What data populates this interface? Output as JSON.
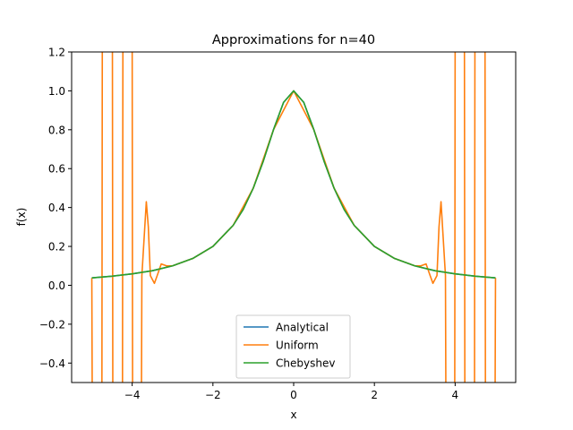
{
  "chart_data": {
    "type": "line",
    "title": "Approximations for n=40",
    "xlabel": "x",
    "ylabel": "f(x)",
    "xlim": [
      -5.5,
      5.5
    ],
    "ylim": [
      -0.5,
      1.2
    ],
    "xticks": [
      -4,
      -2,
      0,
      2,
      4
    ],
    "xtick_labels": [
      "−4",
      "−2",
      "0",
      "2",
      "4"
    ],
    "yticks": [
      -0.4,
      -0.2,
      0.0,
      0.2,
      0.4,
      0.6,
      0.8,
      1.0,
      1.2
    ],
    "ytick_labels": [
      "−0.4",
      "−0.2",
      "0.0",
      "0.2",
      "0.4",
      "0.6",
      "0.8",
      "1.0",
      "1.2"
    ],
    "grid": false,
    "legend_position": "lower center",
    "series": [
      {
        "name": "Analytical",
        "color": "#1f77b4",
        "x": [
          -5.0,
          -4.5,
          -4.0,
          -3.5,
          -3.0,
          -2.5,
          -2.0,
          -1.5,
          -1.25,
          -1.0,
          -0.75,
          -0.5,
          -0.25,
          0.0,
          0.25,
          0.5,
          0.75,
          1.0,
          1.25,
          1.5,
          2.0,
          2.5,
          3.0,
          3.5,
          4.0,
          4.5,
          5.0
        ],
        "y": [
          0.038,
          0.047,
          0.059,
          0.075,
          0.1,
          0.138,
          0.2,
          0.308,
          0.39,
          0.5,
          0.64,
          0.8,
          0.941,
          1.0,
          0.941,
          0.8,
          0.64,
          0.5,
          0.39,
          0.308,
          0.2,
          0.138,
          0.1,
          0.075,
          0.059,
          0.047,
          0.038
        ]
      },
      {
        "name": "Uniform",
        "color": "#ff7f0e",
        "x": [
          -5.0,
          -4.99,
          -4.88,
          -4.75,
          -4.74,
          -4.62,
          -4.49,
          -4.48,
          -4.37,
          -4.24,
          -4.23,
          -4.12,
          -4.0,
          -3.99,
          -3.88,
          -3.77,
          -3.76,
          -3.65,
          -3.6,
          -3.55,
          -3.45,
          -3.38,
          -3.28,
          -3.15,
          -3.0,
          -2.5,
          -2.0,
          -1.5,
          -1.0,
          -0.5,
          0.0,
          0.5,
          1.0,
          1.5,
          2.0,
          2.5,
          3.0,
          3.15,
          3.28,
          3.38,
          3.45,
          3.55,
          3.6,
          3.65,
          3.76,
          3.77,
          3.88,
          3.99,
          4.0,
          4.12,
          4.23,
          4.24,
          4.37,
          4.48,
          4.49,
          4.62,
          4.74,
          4.75,
          4.88,
          4.99,
          5.0
        ],
        "y": [
          0.038,
          -0.55,
          -0.55,
          -0.55,
          1.25,
          1.25,
          1.25,
          -0.55,
          -0.55,
          -0.55,
          1.25,
          1.25,
          1.25,
          -0.55,
          -0.55,
          -0.55,
          0.05,
          0.43,
          0.3,
          0.05,
          0.01,
          0.05,
          0.11,
          0.1,
          0.1,
          0.138,
          0.2,
          0.308,
          0.5,
          0.8,
          1.0,
          0.8,
          0.5,
          0.308,
          0.2,
          0.138,
          0.1,
          0.1,
          0.11,
          0.05,
          0.01,
          0.05,
          0.3,
          0.43,
          0.05,
          -0.55,
          -0.55,
          -0.55,
          1.25,
          1.25,
          1.25,
          -0.55,
          -0.55,
          -0.55,
          1.25,
          1.25,
          1.25,
          -0.55,
          -0.55,
          -0.55,
          0.038
        ]
      },
      {
        "name": "Chebyshev",
        "color": "#2ca02c",
        "x": [
          -5.0,
          -4.5,
          -4.0,
          -3.5,
          -3.0,
          -2.5,
          -2.0,
          -1.5,
          -1.25,
          -1.0,
          -0.75,
          -0.5,
          -0.25,
          0.0,
          0.25,
          0.5,
          0.75,
          1.0,
          1.25,
          1.5,
          2.0,
          2.5,
          3.0,
          3.5,
          4.0,
          4.5,
          5.0
        ],
        "y": [
          0.038,
          0.047,
          0.059,
          0.075,
          0.1,
          0.138,
          0.2,
          0.308,
          0.39,
          0.5,
          0.64,
          0.8,
          0.941,
          1.0,
          0.941,
          0.8,
          0.64,
          0.5,
          0.39,
          0.308,
          0.2,
          0.138,
          0.1,
          0.075,
          0.059,
          0.047,
          0.038
        ]
      }
    ]
  }
}
